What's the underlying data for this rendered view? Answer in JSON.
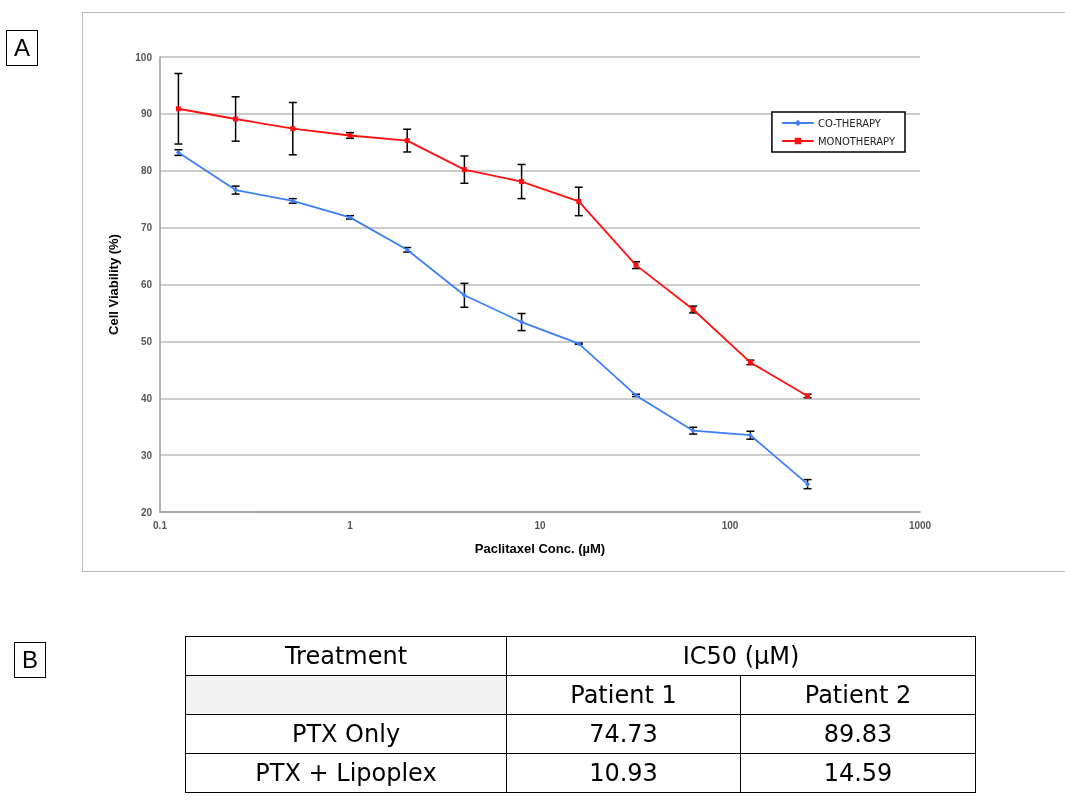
{
  "chart_data": [
    {
      "type": "line",
      "annotations": [
        "A"
      ],
      "xlabel": "Paclitaxel Conc. (µM)",
      "ylabel": "Cell Viability (%)",
      "x": [
        0.125,
        0.25,
        0.5,
        1,
        2,
        4,
        8,
        16,
        32,
        64,
        128,
        256
      ],
      "series": [
        {
          "name": "CO-THERAPY",
          "color": "#3d7ef5",
          "marker": "diamond",
          "values": [
            83.2,
            76.6,
            74.7,
            71.8,
            66.1,
            58.1,
            53.4,
            49.6,
            40.5,
            34.3,
            33.5,
            24.9
          ],
          "errors": [
            0.5,
            0.7,
            0.4,
            0.3,
            0.4,
            2.1,
            1.5,
            0.1,
            0.2,
            0.6,
            0.7,
            0.8
          ]
        },
        {
          "name": "MONOTHERAPY",
          "color": "#ff1010",
          "marker": "square",
          "values": [
            90.9,
            89.1,
            87.4,
            86.2,
            85.3,
            80.2,
            78.1,
            74.6,
            63.4,
            55.6,
            46.3,
            40.4
          ],
          "errors": [
            6.2,
            3.9,
            4.6,
            0.5,
            2.0,
            2.4,
            3.0,
            2.5,
            0.6,
            0.6,
            0.4,
            0.3
          ]
        }
      ],
      "log": "x",
      "xlim": [
        0.1,
        1000
      ],
      "xticks": [
        0.1,
        1,
        10,
        100,
        1000
      ],
      "ylim": [
        20,
        100
      ],
      "yticks": [
        20,
        30,
        40,
        50,
        60,
        70,
        80,
        90,
        100
      ],
      "grid": "y",
      "legend": "top right"
    },
    {
      "type": "other",
      "annotations": [
        "B"
      ],
      "xlabel": "Treatment",
      "title": "IC50 (µM)",
      "categories": [
        "PTX Only",
        "PTX + Lipoplex"
      ],
      "series": [
        {
          "name": "Patient 1",
          "values": [
            74.73,
            10.93
          ]
        },
        {
          "name": "Patient 2",
          "values": [
            89.83,
            14.59
          ]
        }
      ],
      "data_labels": true
    }
  ]
}
